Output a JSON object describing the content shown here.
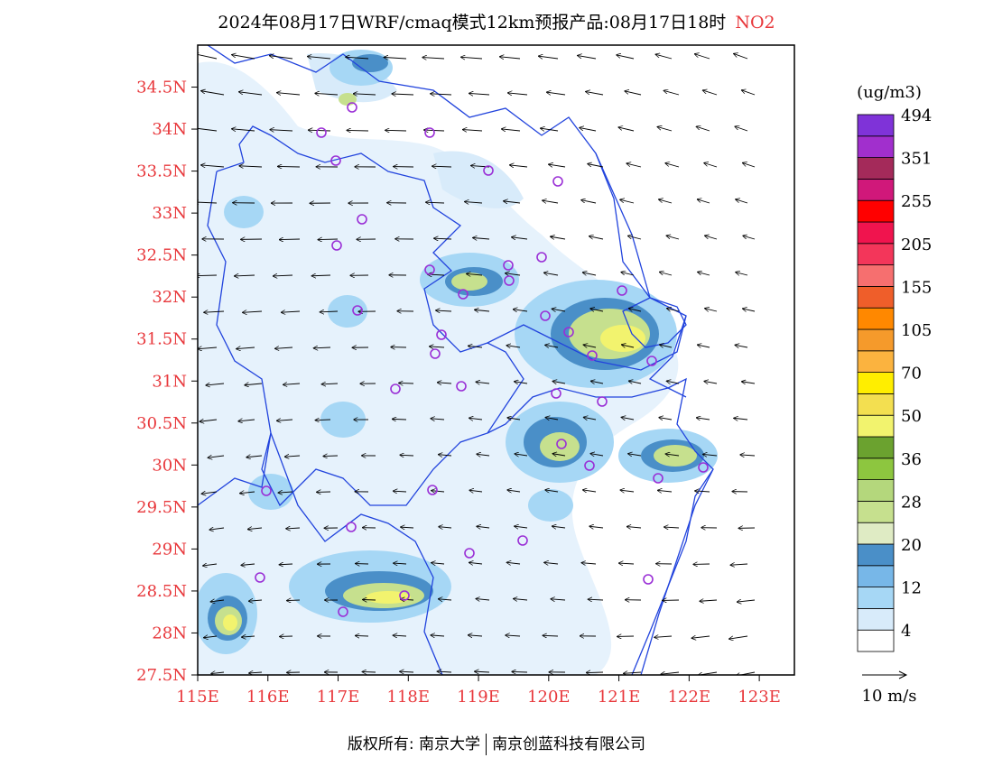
{
  "title": {
    "main": "2024年08月17日WRF/cmaq模式12km预报产品:08月17日18时",
    "species": "NO2"
  },
  "colors": {
    "axis_label": "#e8383c",
    "boundary": "#2244dd",
    "station": "#9a2fd6"
  },
  "axes": {
    "lon_labels": [
      "115E",
      "116E",
      "117E",
      "118E",
      "119E",
      "120E",
      "121E",
      "122E",
      "123E"
    ],
    "lat_labels": [
      "27.5N",
      "28N",
      "28.5N",
      "29N",
      "29.5N",
      "30N",
      "30.5N",
      "31N",
      "31.5N",
      "32N",
      "32.5N",
      "33N",
      "33.5N",
      "34N",
      "34.5N"
    ],
    "lon_range": [
      115,
      123.5
    ],
    "lat_range": [
      27.5,
      35.0
    ]
  },
  "colorbar": {
    "unit": "(ug/m3)",
    "labels": [
      "4",
      "12",
      "20",
      "28",
      "36",
      "50",
      "70",
      "105",
      "155",
      "205",
      "255",
      "351",
      "494"
    ],
    "colors": [
      "#ffffff",
      "#d8ebfa",
      "#a6d7f5",
      "#77b7e8",
      "#4a8fc8",
      "#dfebc4",
      "#c6e08e",
      "#b4d77c",
      "#8dc63f",
      "#6ba22f",
      "#f2f36e",
      "#f3df50",
      "#ffee00",
      "#fbb33f",
      "#f59a2b",
      "#ff8800",
      "#ef5e2a",
      "#f66f6f",
      "#f3365a",
      "#f0144e",
      "#ff0000",
      "#d0187a",
      "#a42a5a",
      "#a12fcd",
      "#7f33d8"
    ]
  },
  "wind_reference": {
    "label": "10 m/s"
  },
  "footer": {
    "copyright": "版权所有: 南京大学",
    "company": "南京创蓝科技有限公司"
  }
}
